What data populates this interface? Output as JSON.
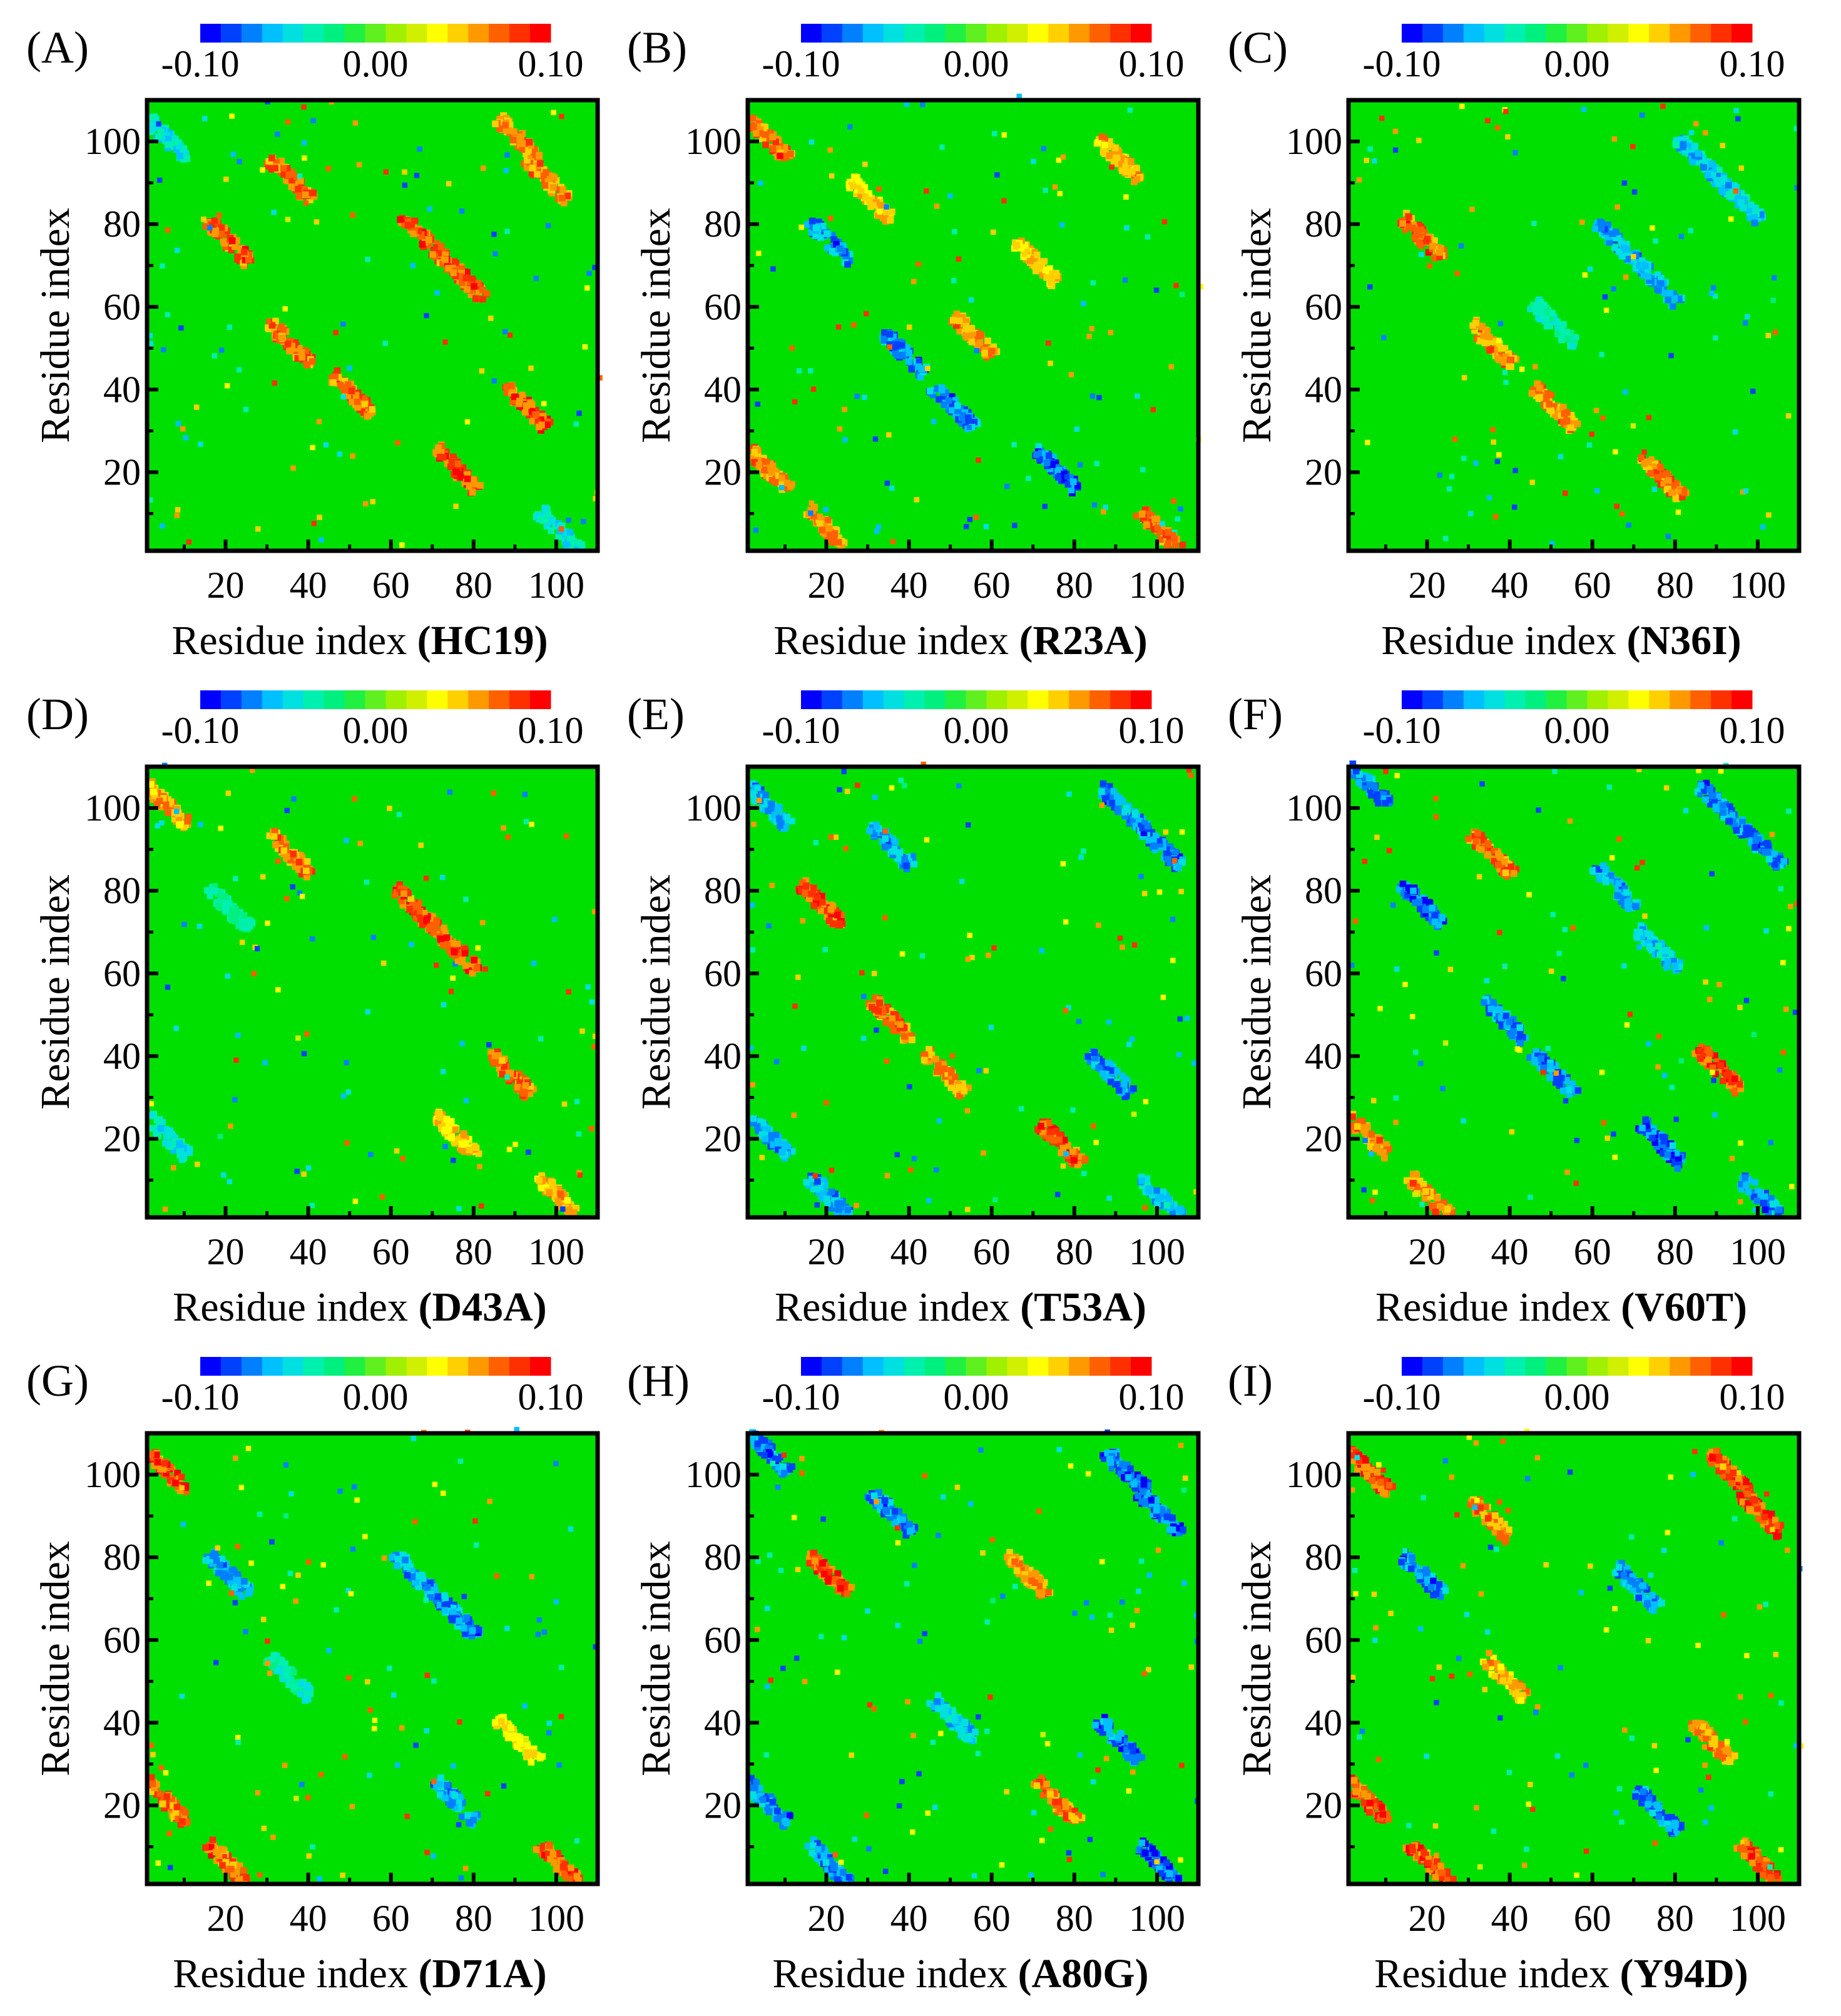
{
  "figure": {
    "colorbar": {
      "min_label": "-0.10",
      "mid_label": "0.00",
      "max_label": "0.10",
      "colors": [
        "#0000ff",
        "#0040ff",
        "#0080ff",
        "#00c0ff",
        "#00e0e0",
        "#00f0b0",
        "#00f080",
        "#20f040",
        "#60f020",
        "#a0f000",
        "#d0f000",
        "#ffff00",
        "#ffd000",
        "#ff9900",
        "#ff6000",
        "#ff3000",
        "#ff0000"
      ]
    },
    "field_color": "#00e000",
    "chart_data": [
      {
        "id": "A",
        "panel_label": "(A)",
        "type": "heatmap",
        "xlabel_prefix": "Residue index ",
        "mutant": "HC19",
        "ylabel": "Residue index",
        "xlim": [
          1,
          110
        ],
        "ylim": [
          1,
          110
        ],
        "xticks": [
          "20",
          "40",
          "60",
          "80",
          "100"
        ],
        "yticks": [
          "20",
          "40",
          "60",
          "80",
          "100"
        ],
        "clim": [
          -0.1,
          0.1
        ],
        "features": [
          {
            "x": 20,
            "y": 75,
            "v": 0.09
          },
          {
            "x": 35,
            "y": 50,
            "v": 0.09
          },
          {
            "x": 50,
            "y": 38,
            "v": 0.09
          },
          {
            "x": 75,
            "y": 20,
            "v": 0.1
          },
          {
            "x": 67,
            "y": 76,
            "v": 0.1
          },
          {
            "x": 77,
            "y": 66,
            "v": 0.1
          },
          {
            "x": 35,
            "y": 90,
            "v": 0.09
          },
          {
            "x": 92,
            "y": 35,
            "v": 0.1
          },
          {
            "x": 97,
            "y": 90,
            "v": 0.08
          },
          {
            "x": 90,
            "y": 100,
            "v": 0.08
          },
          {
            "x": 5,
            "y": 100,
            "v": -0.06
          },
          {
            "x": 100,
            "y": 5,
            "v": -0.06
          }
        ]
      },
      {
        "id": "B",
        "panel_label": "(B)",
        "type": "heatmap",
        "xlabel_prefix": "Residue index ",
        "mutant": "R23A",
        "ylabel": "Residue index",
        "xlim": [
          1,
          110
        ],
        "ylim": [
          1,
          110
        ],
        "xticks": [
          "20",
          "40",
          "60",
          "80",
          "100"
        ],
        "yticks": [
          "20",
          "40",
          "60",
          "80",
          "100"
        ],
        "clim": [
          -0.1,
          0.1
        ],
        "features": [
          {
            "x": 20,
            "y": 75,
            "v": -0.09
          },
          {
            "x": 38,
            "y": 48,
            "v": -0.09
          },
          {
            "x": 50,
            "y": 35,
            "v": -0.09
          },
          {
            "x": 75,
            "y": 20,
            "v": -0.1
          },
          {
            "x": 55,
            "y": 52,
            "v": 0.08
          },
          {
            "x": 70,
            "y": 70,
            "v": 0.06
          },
          {
            "x": 5,
            "y": 100,
            "v": 0.09
          },
          {
            "x": 100,
            "y": 5,
            "v": 0.09
          },
          {
            "x": 5,
            "y": 20,
            "v": 0.08
          },
          {
            "x": 20,
            "y": 5,
            "v": 0.08
          },
          {
            "x": 90,
            "y": 95,
            "v": 0.07
          },
          {
            "x": 30,
            "y": 85,
            "v": 0.06
          }
        ]
      },
      {
        "id": "C",
        "panel_label": "(C)",
        "type": "heatmap",
        "xlabel_prefix": "Residue index ",
        "mutant": "N36I",
        "ylabel": "Residue index",
        "xlim": [
          1,
          110
        ],
        "ylim": [
          1,
          110
        ],
        "xticks": [
          "20",
          "40",
          "60",
          "80",
          "100"
        ],
        "yticks": [
          "20",
          "40",
          "60",
          "80",
          "100"
        ],
        "clim": [
          -0.1,
          0.1
        ],
        "features": [
          {
            "x": 18,
            "y": 76,
            "v": 0.09
          },
          {
            "x": 35,
            "y": 50,
            "v": 0.08
          },
          {
            "x": 50,
            "y": 35,
            "v": 0.08
          },
          {
            "x": 76,
            "y": 18,
            "v": 0.09
          },
          {
            "x": 65,
            "y": 75,
            "v": -0.08
          },
          {
            "x": 75,
            "y": 65,
            "v": -0.08
          },
          {
            "x": 85,
            "y": 95,
            "v": -0.07
          },
          {
            "x": 95,
            "y": 85,
            "v": -0.07
          },
          {
            "x": 50,
            "y": 55,
            "v": -0.05
          }
        ]
      },
      {
        "id": "D",
        "panel_label": "(D)",
        "type": "heatmap",
        "xlabel_prefix": "Residue index ",
        "mutant": "D43A",
        "ylabel": "Residue index",
        "xlim": [
          1,
          110
        ],
        "ylim": [
          1,
          110
        ],
        "xticks": [
          "20",
          "40",
          "60",
          "80",
          "100"
        ],
        "yticks": [
          "20",
          "40",
          "60",
          "80",
          "100"
        ],
        "clim": [
          -0.1,
          0.1
        ],
        "features": [
          {
            "x": 35,
            "y": 88,
            "v": 0.09
          },
          {
            "x": 88,
            "y": 35,
            "v": 0.09
          },
          {
            "x": 65,
            "y": 75,
            "v": 0.1
          },
          {
            "x": 75,
            "y": 65,
            "v": 0.1
          },
          {
            "x": 5,
            "y": 100,
            "v": 0.07
          },
          {
            "x": 100,
            "y": 5,
            "v": 0.07
          },
          {
            "x": 75,
            "y": 20,
            "v": 0.06
          },
          {
            "x": 20,
            "y": 75,
            "v": -0.04
          },
          {
            "x": 5,
            "y": 20,
            "v": -0.06
          }
        ]
      },
      {
        "id": "E",
        "panel_label": "(E)",
        "type": "heatmap",
        "xlabel_prefix": "Residue index ",
        "mutant": "T53A",
        "ylabel": "Residue index",
        "xlim": [
          1,
          110
        ],
        "ylim": [
          1,
          110
        ],
        "xticks": [
          "20",
          "40",
          "60",
          "80",
          "100"
        ],
        "yticks": [
          "20",
          "40",
          "60",
          "80",
          "100"
        ],
        "clim": [
          -0.1,
          0.1
        ],
        "features": [
          {
            "x": 18,
            "y": 76,
            "v": 0.1
          },
          {
            "x": 76,
            "y": 18,
            "v": 0.1
          },
          {
            "x": 35,
            "y": 48,
            "v": 0.09
          },
          {
            "x": 48,
            "y": 35,
            "v": 0.08
          },
          {
            "x": 5,
            "y": 100,
            "v": -0.08
          },
          {
            "x": 100,
            "y": 5,
            "v": -0.07
          },
          {
            "x": 5,
            "y": 20,
            "v": -0.08
          },
          {
            "x": 20,
            "y": 5,
            "v": -0.08
          },
          {
            "x": 90,
            "y": 100,
            "v": -0.09
          },
          {
            "x": 100,
            "y": 90,
            "v": -0.09
          },
          {
            "x": 35,
            "y": 90,
            "v": -0.08
          },
          {
            "x": 88,
            "y": 35,
            "v": -0.09
          }
        ]
      },
      {
        "id": "F",
        "panel_label": "(F)",
        "type": "heatmap",
        "xlabel_prefix": "Residue index ",
        "mutant": "V60T",
        "ylabel": "Residue index",
        "xlim": [
          1,
          110
        ],
        "ylim": [
          1,
          110
        ],
        "xticks": [
          "20",
          "40",
          "60",
          "80",
          "100"
        ],
        "yticks": [
          "20",
          "40",
          "60",
          "80",
          "100"
        ],
        "clim": [
          -0.1,
          0.1
        ],
        "features": [
          {
            "x": 18,
            "y": 76,
            "v": -0.1
          },
          {
            "x": 38,
            "y": 48,
            "v": -0.09
          },
          {
            "x": 50,
            "y": 35,
            "v": -0.09
          },
          {
            "x": 76,
            "y": 18,
            "v": -0.1
          },
          {
            "x": 35,
            "y": 88,
            "v": 0.09
          },
          {
            "x": 90,
            "y": 36,
            "v": 0.1
          },
          {
            "x": 5,
            "y": 105,
            "v": -0.09
          },
          {
            "x": 100,
            "y": 5,
            "v": -0.09
          },
          {
            "x": 90,
            "y": 100,
            "v": -0.09
          },
          {
            "x": 100,
            "y": 90,
            "v": -0.09
          },
          {
            "x": 5,
            "y": 20,
            "v": 0.08
          },
          {
            "x": 20,
            "y": 5,
            "v": 0.08
          },
          {
            "x": 65,
            "y": 80,
            "v": -0.08
          },
          {
            "x": 75,
            "y": 65,
            "v": -0.07
          }
        ]
      },
      {
        "id": "G",
        "panel_label": "(G)",
        "type": "heatmap",
        "xlabel_prefix": "Residue index ",
        "mutant": "D71A",
        "ylabel": "Residue index",
        "xlim": [
          1,
          110
        ],
        "ylim": [
          1,
          110
        ],
        "xticks": [
          "20",
          "40",
          "60",
          "80",
          "100"
        ],
        "yticks": [
          "20",
          "40",
          "60",
          "80",
          "100"
        ],
        "clim": [
          -0.1,
          0.1
        ],
        "features": [
          {
            "x": 5,
            "y": 100,
            "v": 0.1
          },
          {
            "x": 100,
            "y": 5,
            "v": 0.1
          },
          {
            "x": 5,
            "y": 20,
            "v": 0.09
          },
          {
            "x": 20,
            "y": 5,
            "v": 0.09
          },
          {
            "x": 20,
            "y": 75,
            "v": -0.08
          },
          {
            "x": 65,
            "y": 75,
            "v": -0.08
          },
          {
            "x": 75,
            "y": 65,
            "v": -0.09
          },
          {
            "x": 75,
            "y": 20,
            "v": -0.08
          },
          {
            "x": 35,
            "y": 50,
            "v": -0.05
          },
          {
            "x": 90,
            "y": 35,
            "v": 0.05
          }
        ]
      },
      {
        "id": "H",
        "panel_label": "(H)",
        "type": "heatmap",
        "xlabel_prefix": "Residue index ",
        "mutant": "A80G",
        "ylabel": "Residue index",
        "xlim": [
          1,
          110
        ],
        "ylim": [
          1,
          110
        ],
        "xticks": [
          "20",
          "40",
          "60",
          "80",
          "100"
        ],
        "yticks": [
          "20",
          "40",
          "60",
          "80",
          "100"
        ],
        "clim": [
          -0.1,
          0.1
        ],
        "features": [
          {
            "x": 20,
            "y": 75,
            "v": 0.1
          },
          {
            "x": 75,
            "y": 20,
            "v": 0.09
          },
          {
            "x": 68,
            "y": 75,
            "v": 0.08
          },
          {
            "x": 5,
            "y": 105,
            "v": -0.09
          },
          {
            "x": 100,
            "y": 5,
            "v": -0.1
          },
          {
            "x": 92,
            "y": 100,
            "v": -0.1
          },
          {
            "x": 100,
            "y": 90,
            "v": -0.1
          },
          {
            "x": 5,
            "y": 20,
            "v": -0.09
          },
          {
            "x": 20,
            "y": 5,
            "v": -0.09
          },
          {
            "x": 35,
            "y": 90,
            "v": -0.09
          },
          {
            "x": 90,
            "y": 35,
            "v": -0.1
          },
          {
            "x": 50,
            "y": 40,
            "v": -0.07
          }
        ]
      },
      {
        "id": "I",
        "panel_label": "(I)",
        "type": "heatmap",
        "xlabel_prefix": "Residue index ",
        "mutant": "Y94D",
        "ylabel": "Residue index",
        "xlim": [
          1,
          110
        ],
        "ylim": [
          1,
          110
        ],
        "xticks": [
          "20",
          "40",
          "60",
          "80",
          "100"
        ],
        "yticks": [
          "20",
          "40",
          "60",
          "80",
          "100"
        ],
        "clim": [
          -0.1,
          0.1
        ],
        "features": [
          {
            "x": 5,
            "y": 100,
            "v": 0.1
          },
          {
            "x": 100,
            "y": 5,
            "v": 0.1
          },
          {
            "x": 92,
            "y": 100,
            "v": 0.1
          },
          {
            "x": 100,
            "y": 90,
            "v": 0.1
          },
          {
            "x": 5,
            "y": 20,
            "v": 0.1
          },
          {
            "x": 20,
            "y": 5,
            "v": 0.1
          },
          {
            "x": 18,
            "y": 75,
            "v": -0.09
          },
          {
            "x": 75,
            "y": 18,
            "v": -0.09
          },
          {
            "x": 35,
            "y": 88,
            "v": 0.08
          },
          {
            "x": 88,
            "y": 35,
            "v": 0.08
          },
          {
            "x": 70,
            "y": 72,
            "v": -0.08
          },
          {
            "x": 38,
            "y": 50,
            "v": 0.07
          }
        ]
      }
    ]
  }
}
